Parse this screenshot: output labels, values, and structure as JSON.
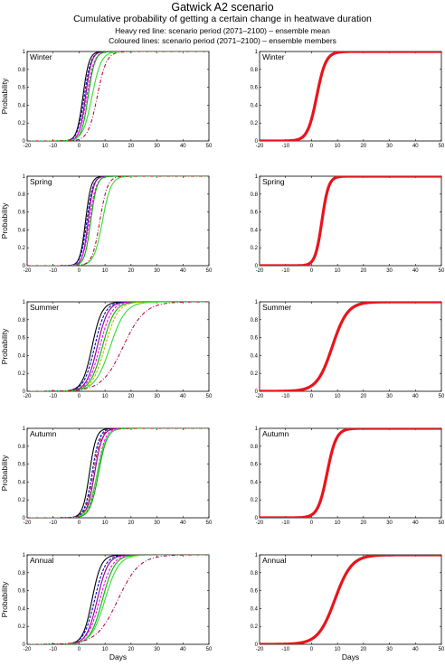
{
  "header": {
    "title": "Gatwick A2 scenario",
    "subtitle": "Cumulative probability of getting a certain change in heatwave duration",
    "note1": "Heavy red line: scenario period (2071–2100) – ensemble mean",
    "note2": "Coloured lines: scenario period (2071–2100) – ensemble members"
  },
  "axes": {
    "ylabel": "Probability",
    "xlabel": "Days",
    "xticks": [
      "-20",
      "-10",
      "0",
      "10",
      "20",
      "30",
      "40",
      "50"
    ],
    "yticks": [
      "0",
      "0.2",
      "0.4",
      "0.6",
      "0.8",
      "1"
    ],
    "xlim": [
      -20,
      50
    ],
    "ylim": [
      0,
      1
    ]
  },
  "colors": {
    "mean": "#e8141b",
    "members": [
      "#000000",
      "#0000c8",
      "#8b008b",
      "#ff00ff",
      "#00b400",
      "#c8b400",
      "#00a0a0",
      "#800000"
    ],
    "green": "#33dd33",
    "darkred_dashdot": "#b00030"
  },
  "chart_data": [
    {
      "type": "line",
      "panel": "ensemble-members",
      "season": "Winter",
      "members": [
        {
          "mu": 1.5,
          "s": 2.0
        },
        {
          "mu": 2.0,
          "s": 2.2
        },
        {
          "mu": 2.5,
          "s": 2.0
        },
        {
          "mu": 3.0,
          "s": 2.4
        },
        {
          "mu": 3.5,
          "s": 2.2
        }
      ],
      "green": {
        "mu": 5.0,
        "s": 3.0
      },
      "dashdot": {
        "mu": 7.0,
        "s": 3.0
      }
    },
    {
      "type": "line",
      "panel": "ensemble-mean",
      "season": "Winter",
      "mean": {
        "mu": 2.0,
        "s": 3.0
      }
    },
    {
      "type": "line",
      "panel": "ensemble-members",
      "season": "Spring",
      "members": [
        {
          "mu": 2.5,
          "s": 1.8
        },
        {
          "mu": 3.0,
          "s": 2.0
        },
        {
          "mu": 3.5,
          "s": 1.8
        },
        {
          "mu": 4.0,
          "s": 2.2
        },
        {
          "mu": 4.5,
          "s": 2.0
        }
      ],
      "green": {
        "mu": 9.0,
        "s": 2.8
      },
      "dashdot": {
        "mu": 8.0,
        "s": 2.5
      }
    },
    {
      "type": "line",
      "panel": "ensemble-mean",
      "season": "Spring",
      "mean": {
        "mu": 4.0,
        "s": 2.2
      }
    },
    {
      "type": "line",
      "panel": "ensemble-members",
      "season": "Summer",
      "members": [
        {
          "mu": 5.0,
          "s": 3.2
        },
        {
          "mu": 6.0,
          "s": 3.5
        },
        {
          "mu": 7.0,
          "s": 3.5
        },
        {
          "mu": 8.0,
          "s": 3.8
        },
        {
          "mu": 9.0,
          "s": 4.0
        },
        {
          "mu": 10.0,
          "s": 4.2
        }
      ],
      "green": {
        "mu": 12.0,
        "s": 5.0
      },
      "dashdot": {
        "mu": 17.0,
        "s": 7.0
      }
    },
    {
      "type": "line",
      "panel": "ensemble-mean",
      "season": "Summer",
      "mean": {
        "mu": 8.0,
        "s": 5.0
      }
    },
    {
      "type": "line",
      "panel": "ensemble-members",
      "season": "Autumn",
      "members": [
        {
          "mu": 4.0,
          "s": 2.2
        },
        {
          "mu": 5.0,
          "s": 2.4
        },
        {
          "mu": 6.0,
          "s": 2.5
        },
        {
          "mu": 7.0,
          "s": 2.6
        },
        {
          "mu": 7.5,
          "s": 2.8
        }
      ],
      "green": {
        "mu": 7.0,
        "s": 3.0
      },
      "dashdot": {
        "mu": 5.5,
        "s": 2.5
      }
    },
    {
      "type": "line",
      "panel": "ensemble-mean",
      "season": "Autumn",
      "mean": {
        "mu": 6.0,
        "s": 3.0
      }
    },
    {
      "type": "line",
      "panel": "ensemble-members",
      "season": "Annual",
      "members": [
        {
          "mu": 5.0,
          "s": 3.0
        },
        {
          "mu": 6.0,
          "s": 3.5
        },
        {
          "mu": 7.0,
          "s": 3.5
        },
        {
          "mu": 8.0,
          "s": 4.0
        },
        {
          "mu": 9.0,
          "s": 4.0
        }
      ],
      "green": {
        "mu": 10.0,
        "s": 4.5
      },
      "dashdot": {
        "mu": 15.0,
        "s": 7.0
      }
    },
    {
      "type": "line",
      "panel": "ensemble-mean",
      "season": "Annual",
      "mean": {
        "mu": 9.0,
        "s": 5.5
      }
    }
  ]
}
